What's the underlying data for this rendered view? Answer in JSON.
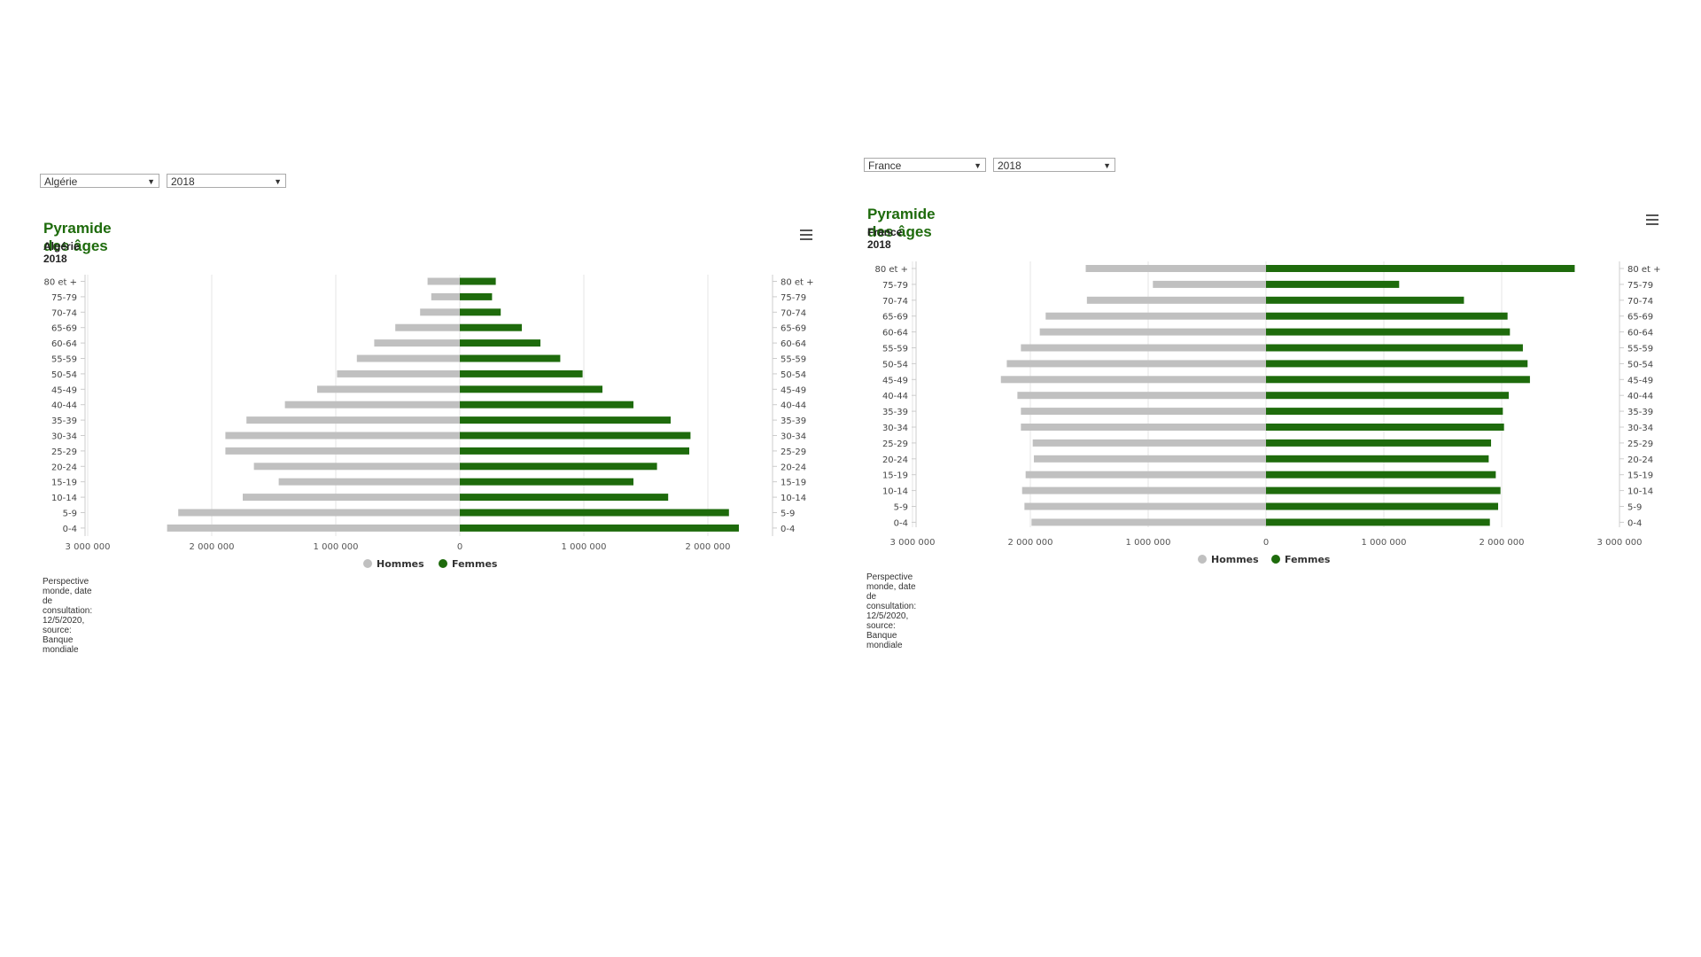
{
  "charts": [
    {
      "country_select": "Algérie",
      "year_select": "2018",
      "title": "Pyramide des âges",
      "subtitle": "Algérie 2018",
      "source": "Perspective monde, date de consultation: 12/5/2020, source: Banque mondiale"
    },
    {
      "country_select": "France",
      "year_select": "2018",
      "title": "Pyramide des âges",
      "subtitle": "France 2018",
      "source": "Perspective monde, date de consultation: 12/5/2020, source: Banque mondiale"
    }
  ],
  "chart_data": [
    {
      "type": "bar",
      "orientation": "horizontal",
      "title": "Pyramide des âges",
      "subtitle": "Algérie 2018",
      "categories": [
        "80 et +",
        "75-79",
        "70-74",
        "65-69",
        "60-64",
        "55-59",
        "50-54",
        "45-49",
        "40-44",
        "35-39",
        "30-34",
        "25-29",
        "20-24",
        "15-19",
        "10-14",
        "5-9",
        "0-4"
      ],
      "series": [
        {
          "name": "Hommes",
          "color": "#c0c0c0",
          "values": [
            260000,
            230000,
            320000,
            520000,
            690000,
            830000,
            990000,
            1150000,
            1410000,
            1720000,
            1890000,
            1890000,
            1660000,
            1460000,
            1750000,
            2270000,
            2360000
          ]
        },
        {
          "name": "Femmes",
          "color": "#1e6b0c",
          "values": [
            290000,
            260000,
            330000,
            500000,
            650000,
            810000,
            990000,
            1150000,
            1400000,
            1700000,
            1860000,
            1850000,
            1590000,
            1400000,
            1680000,
            2170000,
            2250000
          ]
        }
      ],
      "x_ticks": [
        "3 000 000",
        "2 000 000",
        "1 000 000",
        "0",
        "1 000 000",
        "2 000 000"
      ],
      "legend": [
        "Hommes",
        "Femmes"
      ],
      "legend_position": "bottom-center"
    },
    {
      "type": "bar",
      "orientation": "horizontal",
      "title": "Pyramide des âges",
      "subtitle": "France 2018",
      "categories": [
        "80 et +",
        "75-79",
        "70-74",
        "65-69",
        "60-64",
        "55-59",
        "50-54",
        "45-49",
        "40-44",
        "35-39",
        "30-34",
        "25-29",
        "20-24",
        "15-19",
        "10-14",
        "5-9",
        "0-4"
      ],
      "series": [
        {
          "name": "Hommes",
          "color": "#c0c0c0",
          "values": [
            1530000,
            960000,
            1520000,
            1870000,
            1920000,
            2080000,
            2200000,
            2250000,
            2110000,
            2080000,
            2080000,
            1980000,
            1970000,
            2040000,
            2070000,
            2050000,
            1990000
          ]
        },
        {
          "name": "Femmes",
          "color": "#1e6b0c",
          "values": [
            2620000,
            1130000,
            1680000,
            2050000,
            2070000,
            2180000,
            2220000,
            2240000,
            2060000,
            2010000,
            2020000,
            1910000,
            1890000,
            1950000,
            1990000,
            1970000,
            1900000
          ]
        }
      ],
      "x_ticks": [
        "3 000 000",
        "2 000 000",
        "1 000 000",
        "0",
        "1 000 000",
        "2 000 000",
        "3 000 000"
      ],
      "legend": [
        "Hommes",
        "Femmes"
      ],
      "legend_position": "bottom-center"
    }
  ]
}
